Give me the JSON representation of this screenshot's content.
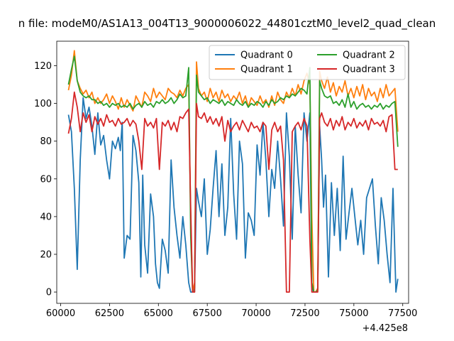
{
  "chart_data": {
    "type": "line",
    "title": "n file: modeM0/AS1A13_004T13_9000006022_44801cztM0_level2_quad_clean",
    "xlabel": "",
    "ylabel": "",
    "x_offset_label": "+4.425e8",
    "xlim": [
      59800,
      77800
    ],
    "ylim": [
      -6,
      133
    ],
    "xticks": [
      60000,
      62500,
      65000,
      67500,
      70000,
      72500,
      75000,
      77500
    ],
    "xtick_labels": [
      "60000",
      "62500",
      "65000",
      "67500",
      "70000",
      "72500",
      "75000",
      "77500"
    ],
    "yticks": [
      0,
      20,
      40,
      60,
      80,
      100,
      120
    ],
    "ytick_labels": [
      "0",
      "20",
      "40",
      "60",
      "80",
      "100",
      "120"
    ],
    "grid": false,
    "legend_placement": "upper right",
    "legend_columns": 2,
    "series": [
      {
        "name": "Quadrant 0",
        "color": "#1f77b4",
        "x": [
          60400,
          60550,
          60700,
          60850,
          61000,
          61150,
          61300,
          61450,
          61600,
          61750,
          61900,
          62050,
          62200,
          62350,
          62500,
          62650,
          62800,
          62950,
          63050,
          63150,
          63250,
          63400,
          63550,
          63700,
          63850,
          64000,
          64100,
          64200,
          64300,
          64450,
          64600,
          64750,
          64850,
          64950,
          65050,
          65200,
          65350,
          65500,
          65650,
          65800,
          65950,
          66100,
          66250,
          66400,
          66550,
          66650,
          66750,
          66850,
          66950,
          67050,
          67200,
          67350,
          67500,
          67650,
          67800,
          67950,
          68100,
          68250,
          68400,
          68550,
          68700,
          68850,
          69000,
          69150,
          69300,
          69450,
          69600,
          69750,
          69900,
          70050,
          70200,
          70350,
          70500,
          70650,
          70800,
          70950,
          71100,
          71250,
          71400,
          71550,
          71700,
          71850,
          72000,
          72150,
          72300,
          72450,
          72600,
          72750,
          72850,
          72950,
          73050,
          73150,
          73250,
          73350,
          73450,
          73550,
          73700,
          73850,
          74000,
          74150,
          74300,
          74450,
          74600,
          74750,
          74900,
          75050,
          75200,
          75350,
          75500,
          75650,
          75800,
          75950,
          76100,
          76250,
          76400,
          76550,
          76700,
          76850,
          77000,
          77150,
          77250
        ],
        "y": [
          94,
          85,
          55,
          12,
          70,
          103,
          92,
          98,
          88,
          73,
          95,
          78,
          83,
          70,
          60,
          80,
          76,
          82,
          75,
          90,
          18,
          30,
          28,
          83,
          75,
          58,
          8,
          62,
          25,
          10,
          52,
          40,
          15,
          5,
          2,
          28,
          22,
          10,
          70,
          45,
          30,
          18,
          40,
          25,
          5,
          0,
          0,
          2,
          55,
          48,
          40,
          60,
          20,
          33,
          55,
          75,
          40,
          68,
          30,
          45,
          92,
          52,
          28,
          80,
          68,
          18,
          42,
          38,
          30,
          78,
          62,
          90,
          70,
          40,
          65,
          55,
          80,
          60,
          35,
          95,
          72,
          28,
          88,
          62,
          42,
          95,
          80,
          95,
          2,
          0,
          0,
          2,
          88,
          70,
          45,
          62,
          8,
          58,
          30,
          55,
          22,
          72,
          28,
          42,
          55,
          40,
          25,
          38,
          20,
          50,
          55,
          60,
          35,
          15,
          50,
          38,
          20,
          5,
          55,
          0,
          7
        ]
      },
      {
        "name": "Quadrant 1",
        "color": "#ff7f0e",
        "x": [
          60400,
          60550,
          60700,
          60850,
          61000,
          61150,
          61300,
          61450,
          61600,
          61750,
          61900,
          62050,
          62200,
          62350,
          62500,
          62650,
          62800,
          62950,
          63100,
          63250,
          63400,
          63550,
          63700,
          63850,
          64000,
          64150,
          64300,
          64450,
          64600,
          64750,
          64900,
          65050,
          65200,
          65350,
          65500,
          65650,
          65800,
          65950,
          66100,
          66250,
          66400,
          66550,
          66650,
          66750,
          66850,
          66950,
          67050,
          67200,
          67350,
          67500,
          67650,
          67800,
          67950,
          68100,
          68250,
          68400,
          68550,
          68700,
          68850,
          69000,
          69150,
          69300,
          69450,
          69600,
          69750,
          69900,
          70050,
          70200,
          70350,
          70500,
          70650,
          70800,
          70950,
          71100,
          71250,
          71400,
          71550,
          71700,
          71850,
          72000,
          72150,
          72300,
          72450,
          72600,
          72750,
          72850,
          72950,
          73050,
          73150,
          73250,
          73350,
          73500,
          73650,
          73800,
          73950,
          74100,
          74250,
          74400,
          74550,
          74700,
          74850,
          75000,
          75150,
          75300,
          75450,
          75600,
          75750,
          75900,
          76050,
          76200,
          76350,
          76500,
          76650,
          76800,
          76950,
          77100,
          77250
        ],
        "y": [
          107,
          115,
          128,
          112,
          108,
          105,
          107,
          103,
          106,
          100,
          103,
          100,
          102,
          105,
          100,
          104,
          101,
          97,
          103,
          98,
          102,
          99,
          96,
          104,
          101,
          98,
          106,
          104,
          101,
          108,
          103,
          106,
          104,
          102,
          108,
          106,
          105,
          103,
          107,
          104,
          108,
          110,
          40,
          0,
          5,
          122,
          108,
          104,
          106,
          101,
          108,
          103,
          106,
          101,
          107,
          103,
          105,
          101,
          104,
          102,
          106,
          100,
          104,
          98,
          103,
          101,
          99,
          104,
          100,
          102,
          98,
          104,
          99,
          106,
          102,
          100,
          106,
          103,
          108,
          104,
          110,
          105,
          112,
          116,
          110,
          40,
          0,
          0,
          2,
          117,
          112,
          108,
          114,
          106,
          111,
          104,
          109,
          106,
          112,
          104,
          108,
          103,
          109,
          104,
          110,
          102,
          108,
          104,
          106,
          101,
          108,
          103,
          110,
          104,
          106,
          108,
          85
        ]
      },
      {
        "name": "Quadrant 2",
        "color": "#2ca02c",
        "x": [
          60400,
          60550,
          60700,
          60850,
          61000,
          61150,
          61300,
          61450,
          61600,
          61750,
          61900,
          62050,
          62200,
          62350,
          62500,
          62650,
          62800,
          62950,
          63100,
          63250,
          63400,
          63550,
          63700,
          63850,
          64000,
          64150,
          64300,
          64450,
          64600,
          64750,
          64900,
          65050,
          65200,
          65350,
          65500,
          65650,
          65800,
          65950,
          66100,
          66250,
          66400,
          66550,
          66650,
          66750,
          66850,
          66950,
          67050,
          67200,
          67350,
          67500,
          67650,
          67800,
          67950,
          68100,
          68250,
          68400,
          68550,
          68700,
          68850,
          69000,
          69150,
          69300,
          69450,
          69600,
          69750,
          69900,
          70050,
          70200,
          70350,
          70500,
          70650,
          70800,
          70950,
          71100,
          71250,
          71400,
          71550,
          71700,
          71850,
          72000,
          72150,
          72300,
          72450,
          72600,
          72750,
          72850,
          72950,
          73050,
          73150,
          73250,
          73350,
          73500,
          73650,
          73800,
          73950,
          74100,
          74250,
          74400,
          74550,
          74700,
          74850,
          75000,
          75150,
          75300,
          75450,
          75600,
          75750,
          75900,
          76050,
          76200,
          76350,
          76500,
          76650,
          76800,
          76950,
          77100,
          77250
        ],
        "y": [
          110,
          118,
          125,
          112,
          106,
          104,
          103,
          104,
          102,
          102,
          100,
          101,
          99,
          100,
          98,
          100,
          99,
          100,
          98,
          99,
          98,
          100,
          97,
          99,
          100,
          98,
          101,
          99,
          100,
          98,
          101,
          100,
          102,
          100,
          101,
          103,
          100,
          102,
          105,
          103,
          104,
          119,
          30,
          0,
          0,
          115,
          106,
          104,
          102,
          103,
          100,
          102,
          101,
          100,
          102,
          99,
          101,
          100,
          99,
          102,
          100,
          99,
          101,
          98,
          100,
          99,
          101,
          100,
          98,
          101,
          99,
          102,
          100,
          101,
          103,
          102,
          104,
          103,
          105,
          104,
          106,
          108,
          107,
          105,
          119,
          5,
          0,
          0,
          1,
          112,
          108,
          104,
          103,
          104,
          100,
          101,
          99,
          102,
          98,
          105,
          98,
          101,
          97,
          99,
          100,
          98,
          99,
          97,
          99,
          98,
          100,
          97,
          99,
          98,
          100,
          101,
          77
        ]
      },
      {
        "name": "Quadrant 3",
        "color": "#d62728",
        "x": [
          60400,
          60550,
          60700,
          60850,
          61000,
          61150,
          61300,
          61450,
          61600,
          61750,
          61900,
          62050,
          62200,
          62350,
          62500,
          62650,
          62800,
          62950,
          63100,
          63250,
          63400,
          63550,
          63700,
          63850,
          64000,
          64150,
          64300,
          64450,
          64600,
          64750,
          64900,
          65050,
          65200,
          65350,
          65500,
          65650,
          65800,
          65950,
          66100,
          66250,
          66400,
          66550,
          66650,
          66750,
          66850,
          66950,
          67050,
          67200,
          67350,
          67500,
          67650,
          67800,
          67950,
          68100,
          68250,
          68400,
          68550,
          68700,
          68850,
          69000,
          69150,
          69300,
          69450,
          69600,
          69750,
          69900,
          70050,
          70200,
          70350,
          70500,
          70650,
          70800,
          70950,
          71100,
          71250,
          71400,
          71550,
          71700,
          71850,
          72000,
          72150,
          72300,
          72450,
          72600,
          72750,
          72850,
          72950,
          73050,
          73150,
          73250,
          73350,
          73500,
          73650,
          73800,
          73950,
          74100,
          74250,
          74400,
          74550,
          74700,
          74850,
          75000,
          75150,
          75300,
          75450,
          75600,
          75750,
          75900,
          76050,
          76200,
          76350,
          76500,
          76650,
          76800,
          76950,
          77100,
          77250
        ],
        "y": [
          84,
          92,
          106,
          98,
          85,
          95,
          90,
          94,
          85,
          93,
          89,
          92,
          88,
          94,
          90,
          91,
          88,
          92,
          89,
          90,
          92,
          88,
          91,
          89,
          80,
          65,
          92,
          88,
          90,
          87,
          92,
          65,
          90,
          88,
          91,
          86,
          90,
          85,
          93,
          92,
          95,
          97,
          45,
          0,
          0,
          100,
          93,
          92,
          95,
          90,
          93,
          89,
          92,
          88,
          93,
          80,
          91,
          85,
          88,
          90,
          86,
          91,
          88,
          85,
          90,
          87,
          88,
          85,
          90,
          88,
          65,
          86,
          90,
          85,
          88,
          70,
          0,
          0,
          85,
          88,
          90,
          86,
          92,
          88,
          28,
          0,
          0,
          0,
          0,
          92,
          95,
          90,
          88,
          92,
          86,
          91,
          88,
          93,
          86,
          90,
          88,
          92,
          87,
          90,
          88,
          91,
          86,
          92,
          89,
          90,
          88,
          91,
          85,
          93,
          94,
          65,
          65
        ]
      }
    ]
  }
}
